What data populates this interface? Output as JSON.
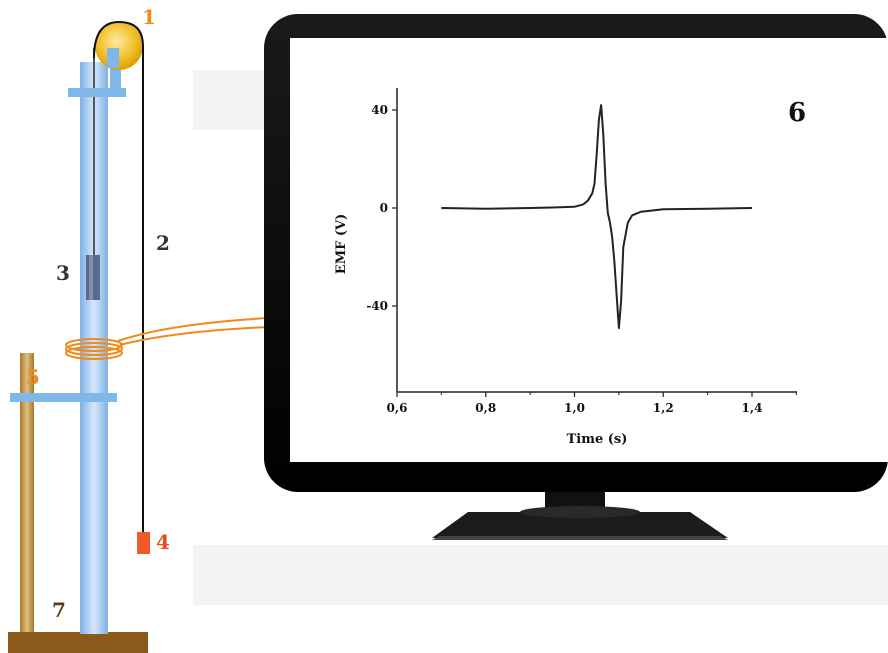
{
  "labels": {
    "pulley": "1",
    "string": "2",
    "magnet": "3",
    "weight": "4",
    "coil": "5",
    "monitor": "6",
    "stand": "7"
  },
  "colors": {
    "tube": "#a8c8ee",
    "clamp": "#7fb8e8",
    "pulley": "#f2b300",
    "coil": "#f08a1c",
    "weight": "#f05a28",
    "rod": "#b88a3a",
    "base": "#8a5a1a",
    "label_orange": "#f08a1c",
    "label_red": "#e84a20",
    "label_dark": "#333333",
    "monitor_frame": "#000000",
    "floor_band": "#f2f2f2",
    "trace": "#222222"
  },
  "chart_data": {
    "type": "line",
    "xlabel": "Time (s)",
    "ylabel": "EMF (V)",
    "xlim": [
      0.6,
      1.5
    ],
    "ylim": [
      -75,
      50
    ],
    "xticks": [
      0.6,
      0.8,
      1.0,
      1.2,
      1.4
    ],
    "xtick_labels": [
      "0,6",
      "0,8",
      "1,0",
      "1,2",
      "1,4"
    ],
    "yticks": [
      40,
      0,
      -40
    ],
    "ytick_labels": [
      "40",
      "0",
      "-40"
    ],
    "grid": false,
    "series": [
      {
        "x": [
          0.7,
          0.8,
          0.9,
          0.95,
          1.0,
          1.02,
          1.03,
          1.04,
          1.045,
          1.05,
          1.055,
          1.06,
          1.065,
          1.07,
          1.075,
          1.08,
          1.085,
          1.09,
          1.095,
          1.1,
          1.105,
          1.11,
          1.12,
          1.13,
          1.15,
          1.2,
          1.3,
          1.4
        ],
        "y": [
          0,
          -0.3,
          0,
          0.2,
          0.5,
          1.5,
          3.0,
          6.0,
          10.0,
          22.0,
          36.0,
          42.0,
          30.0,
          10.0,
          -2.0,
          -6.0,
          -12.0,
          -22.0,
          -36.0,
          -49.0,
          -38.0,
          -16.0,
          -6.0,
          -3.0,
          -1.5,
          -0.5,
          -0.3,
          0
        ]
      }
    ]
  }
}
